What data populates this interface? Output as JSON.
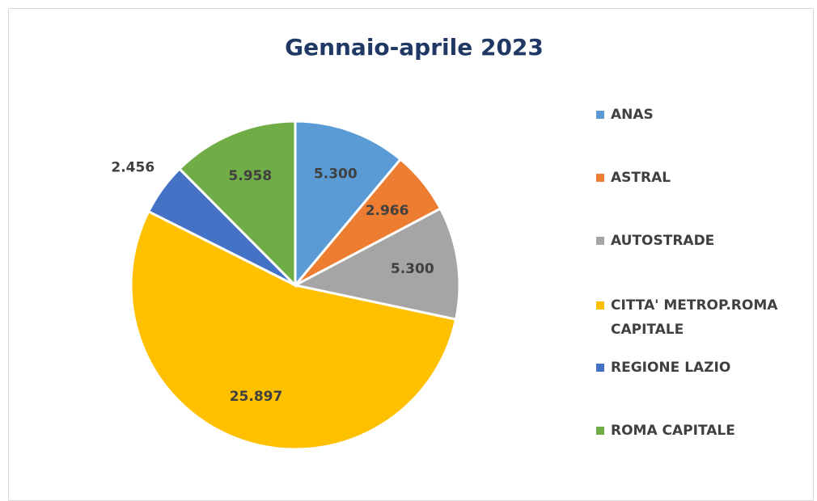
{
  "chart_data": {
    "type": "pie",
    "title": "Gennaio-aprile 2023",
    "categories": [
      "ANAS",
      "ASTRAL",
      "AUTOSTRADE",
      "CITTA' METROP.ROMA CAPITALE",
      "REGIONE LAZIO",
      "ROMA CAPITALE"
    ],
    "values": [
      5300,
      2966,
      5300,
      25897,
      2456,
      5958
    ],
    "value_labels": [
      "5.300",
      "2.966",
      "5.300",
      "25.897",
      "2.456",
      "5.958"
    ],
    "colors": [
      "#5b9bd5",
      "#ed7d31",
      "#a5a5a5",
      "#ffc000",
      "#4472c4",
      "#70ad47"
    ],
    "legend": "right"
  }
}
